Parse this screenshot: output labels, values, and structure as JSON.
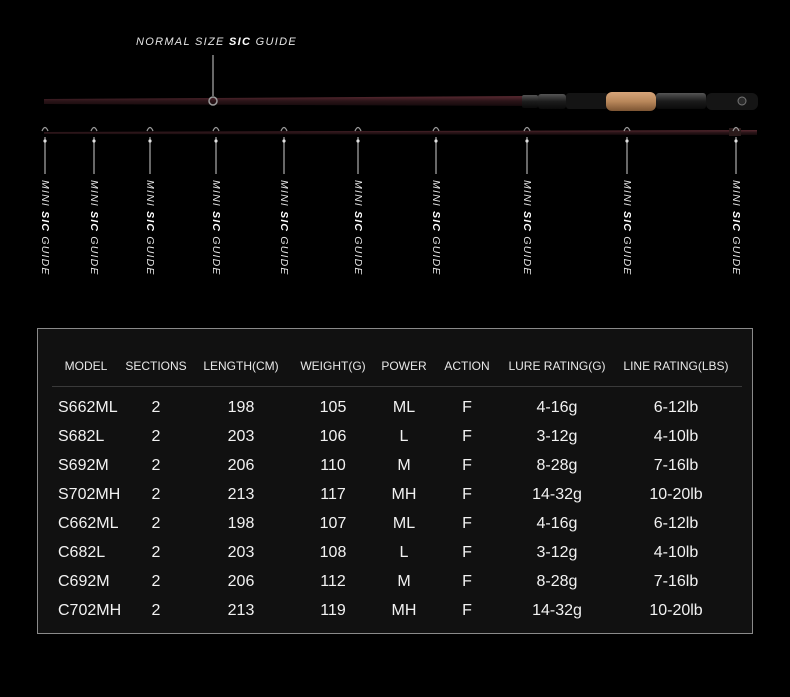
{
  "callout": {
    "prefix": "NORMAL SIZE ",
    "emphasis": "SIC",
    "suffix": " GUIDE"
  },
  "guides": [
    {
      "prefix": "MINI ",
      "emphasis": "SIC",
      "suffix": " GUIDE"
    },
    {
      "prefix": "MINI ",
      "emphasis": "SIC",
      "suffix": " GUIDE"
    },
    {
      "prefix": "MINI ",
      "emphasis": "SIC",
      "suffix": " GUIDE"
    },
    {
      "prefix": "MINI ",
      "emphasis": "SIC",
      "suffix": " GUIDE"
    },
    {
      "prefix": "MINI ",
      "emphasis": "SIC",
      "suffix": " GUIDE"
    },
    {
      "prefix": "MINI ",
      "emphasis": "SIC",
      "suffix": " GUIDE"
    },
    {
      "prefix": "MINI ",
      "emphasis": "SIC",
      "suffix": " GUIDE"
    },
    {
      "prefix": "MINI ",
      "emphasis": "SIC",
      "suffix": " GUIDE"
    },
    {
      "prefix": "MINI ",
      "emphasis": "SIC",
      "suffix": " GUIDE"
    },
    {
      "prefix": "MINI ",
      "emphasis": "SIC",
      "suffix": " GUIDE"
    }
  ],
  "colors": {
    "background": "#000000",
    "rod_blank": "#3a1c22",
    "cork": "#b8875a",
    "panel_border": "#8a8a8a"
  },
  "table": {
    "headers": [
      "MODEL",
      "SECTIONS",
      "LENGTH(CM)",
      "WEIGHT(G)",
      "POWER",
      "ACTION",
      "LURE RATING(G)",
      "LINE RATING(LBS)"
    ],
    "rows": [
      [
        "S662ML",
        "2",
        "198",
        "105",
        "ML",
        "F",
        "4-16g",
        "6-12lb"
      ],
      [
        "S682L",
        "2",
        "203",
        "106",
        "L",
        "F",
        "3-12g",
        "4-10lb"
      ],
      [
        "S692M",
        "2",
        "206",
        "110",
        "M",
        "F",
        "8-28g",
        "7-16lb"
      ],
      [
        "S702MH",
        "2",
        "213",
        "117",
        "MH",
        "F",
        "14-32g",
        "10-20lb"
      ],
      [
        "C662ML",
        "2",
        "198",
        "107",
        "ML",
        "F",
        "4-16g",
        "6-12lb"
      ],
      [
        "C682L",
        "2",
        "203",
        "108",
        "L",
        "F",
        "3-12g",
        "4-10lb"
      ],
      [
        "C692M",
        "2",
        "206",
        "112",
        "M",
        "F",
        "8-28g",
        "7-16lb"
      ],
      [
        "C702MH",
        "2",
        "213",
        "119",
        "MH",
        "F",
        "14-32g",
        "10-20lb"
      ]
    ]
  }
}
